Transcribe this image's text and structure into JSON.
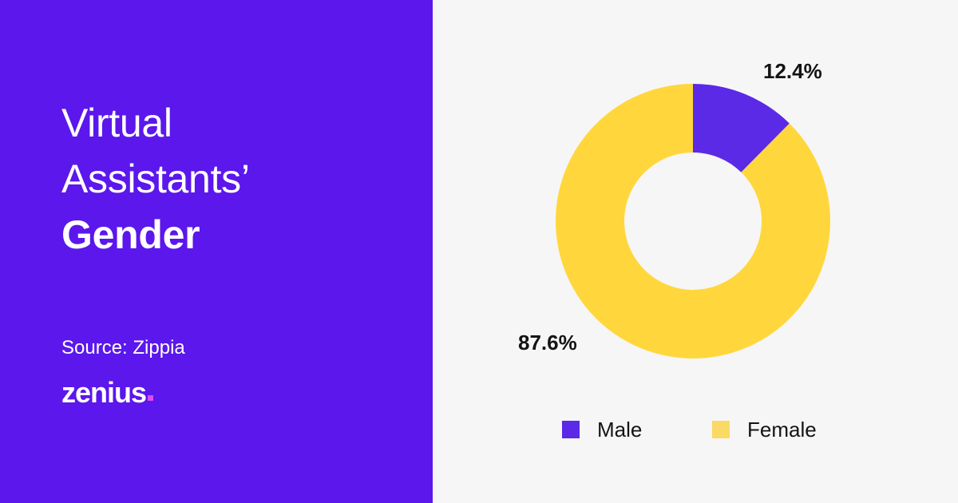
{
  "title": {
    "line1": "Virtual",
    "line2": "Assistants’",
    "line3": "Gender"
  },
  "source": "Source: Zippia",
  "logo": "zenius",
  "colors": {
    "panel": "#5b17ec",
    "male": "#5b2ae6",
    "female": "#ffd73c",
    "background": "#f6f6f6"
  },
  "chart_data": {
    "type": "pie",
    "variant": "donut",
    "categories": [
      "Male",
      "Female"
    ],
    "values": [
      12.4,
      87.6
    ],
    "unit": "%",
    "data_labels": [
      "12.4%",
      "87.6%"
    ],
    "legend_position": "bottom"
  }
}
